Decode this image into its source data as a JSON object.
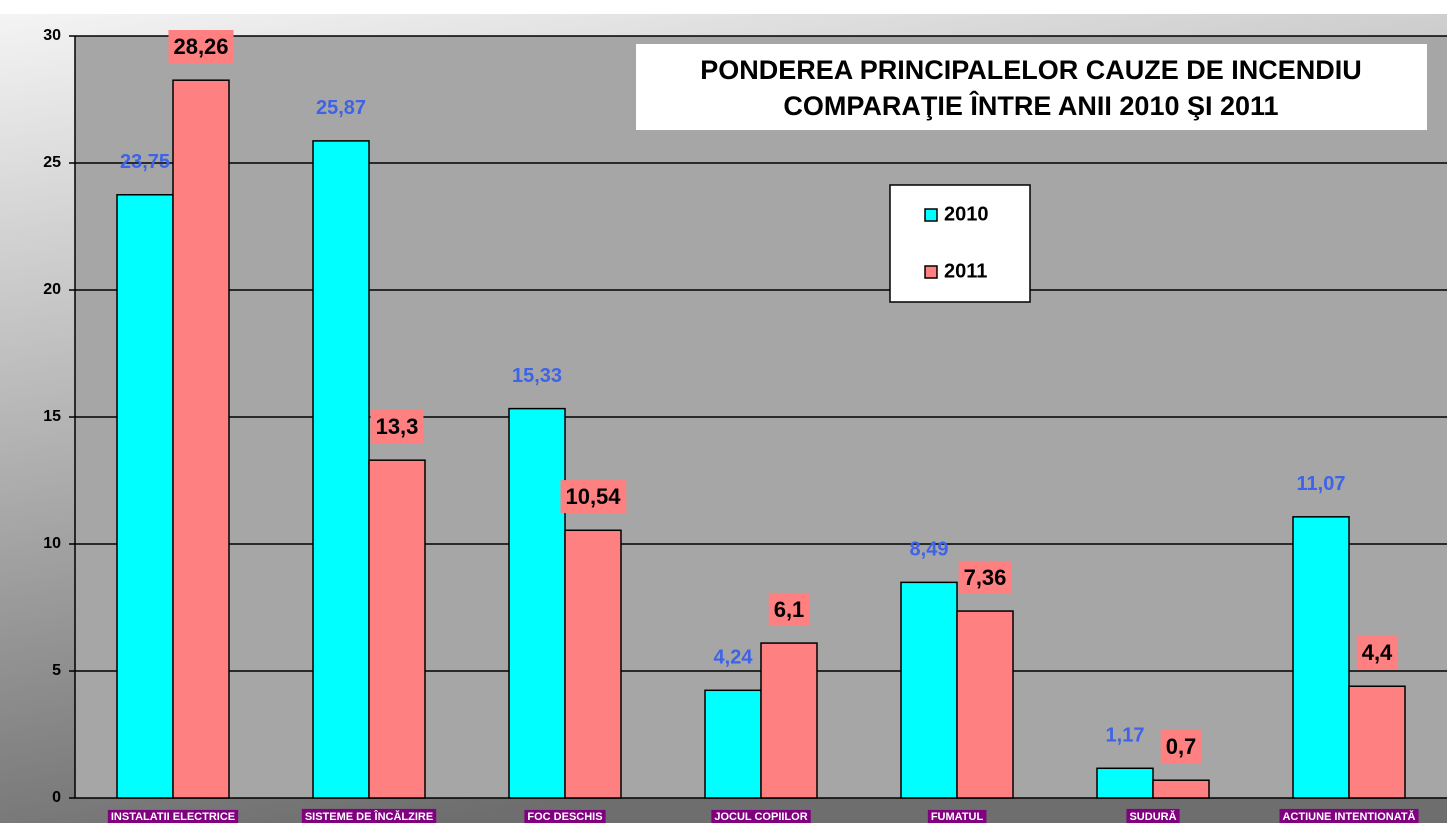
{
  "chart_data": {
    "type": "bar",
    "title": "PONDEREA PRINCIPALELOR CAUZE DE INCENDIU",
    "subtitle": "COMPARAŢIE ÎNTRE ANII 2010 ŞI 2011",
    "categories": [
      "INSTALATII ELECTRICE",
      "SISTEME DE ÎNCĂLZIRE",
      "FOC DESCHIS",
      "JOCUL COPIILOR",
      "FUMATUL",
      "SUDURĂ",
      "ACTIUNE INTENTIONATĂ"
    ],
    "series": [
      {
        "name": "2010",
        "color": "#00ffff",
        "values": [
          23.75,
          25.87,
          15.33,
          4.24,
          8.49,
          1.17,
          11.07
        ],
        "value_labels": [
          "23,75",
          "25,87",
          "15,33",
          "4,24",
          "8,49",
          "1,17",
          "11,07"
        ]
      },
      {
        "name": "2011",
        "color": "#ff8080",
        "values": [
          28.26,
          13.3,
          10.54,
          6.1,
          7.36,
          0.7,
          4.4
        ],
        "value_labels": [
          "28,26",
          "13,3",
          "10,54",
          "6,1",
          "7,36",
          "0,7",
          "4,4"
        ]
      }
    ],
    "ylim": [
      0,
      30
    ],
    "yticks": [
      0,
      5,
      10,
      15,
      20,
      25,
      30
    ],
    "grid": true,
    "legend": "top-right"
  }
}
